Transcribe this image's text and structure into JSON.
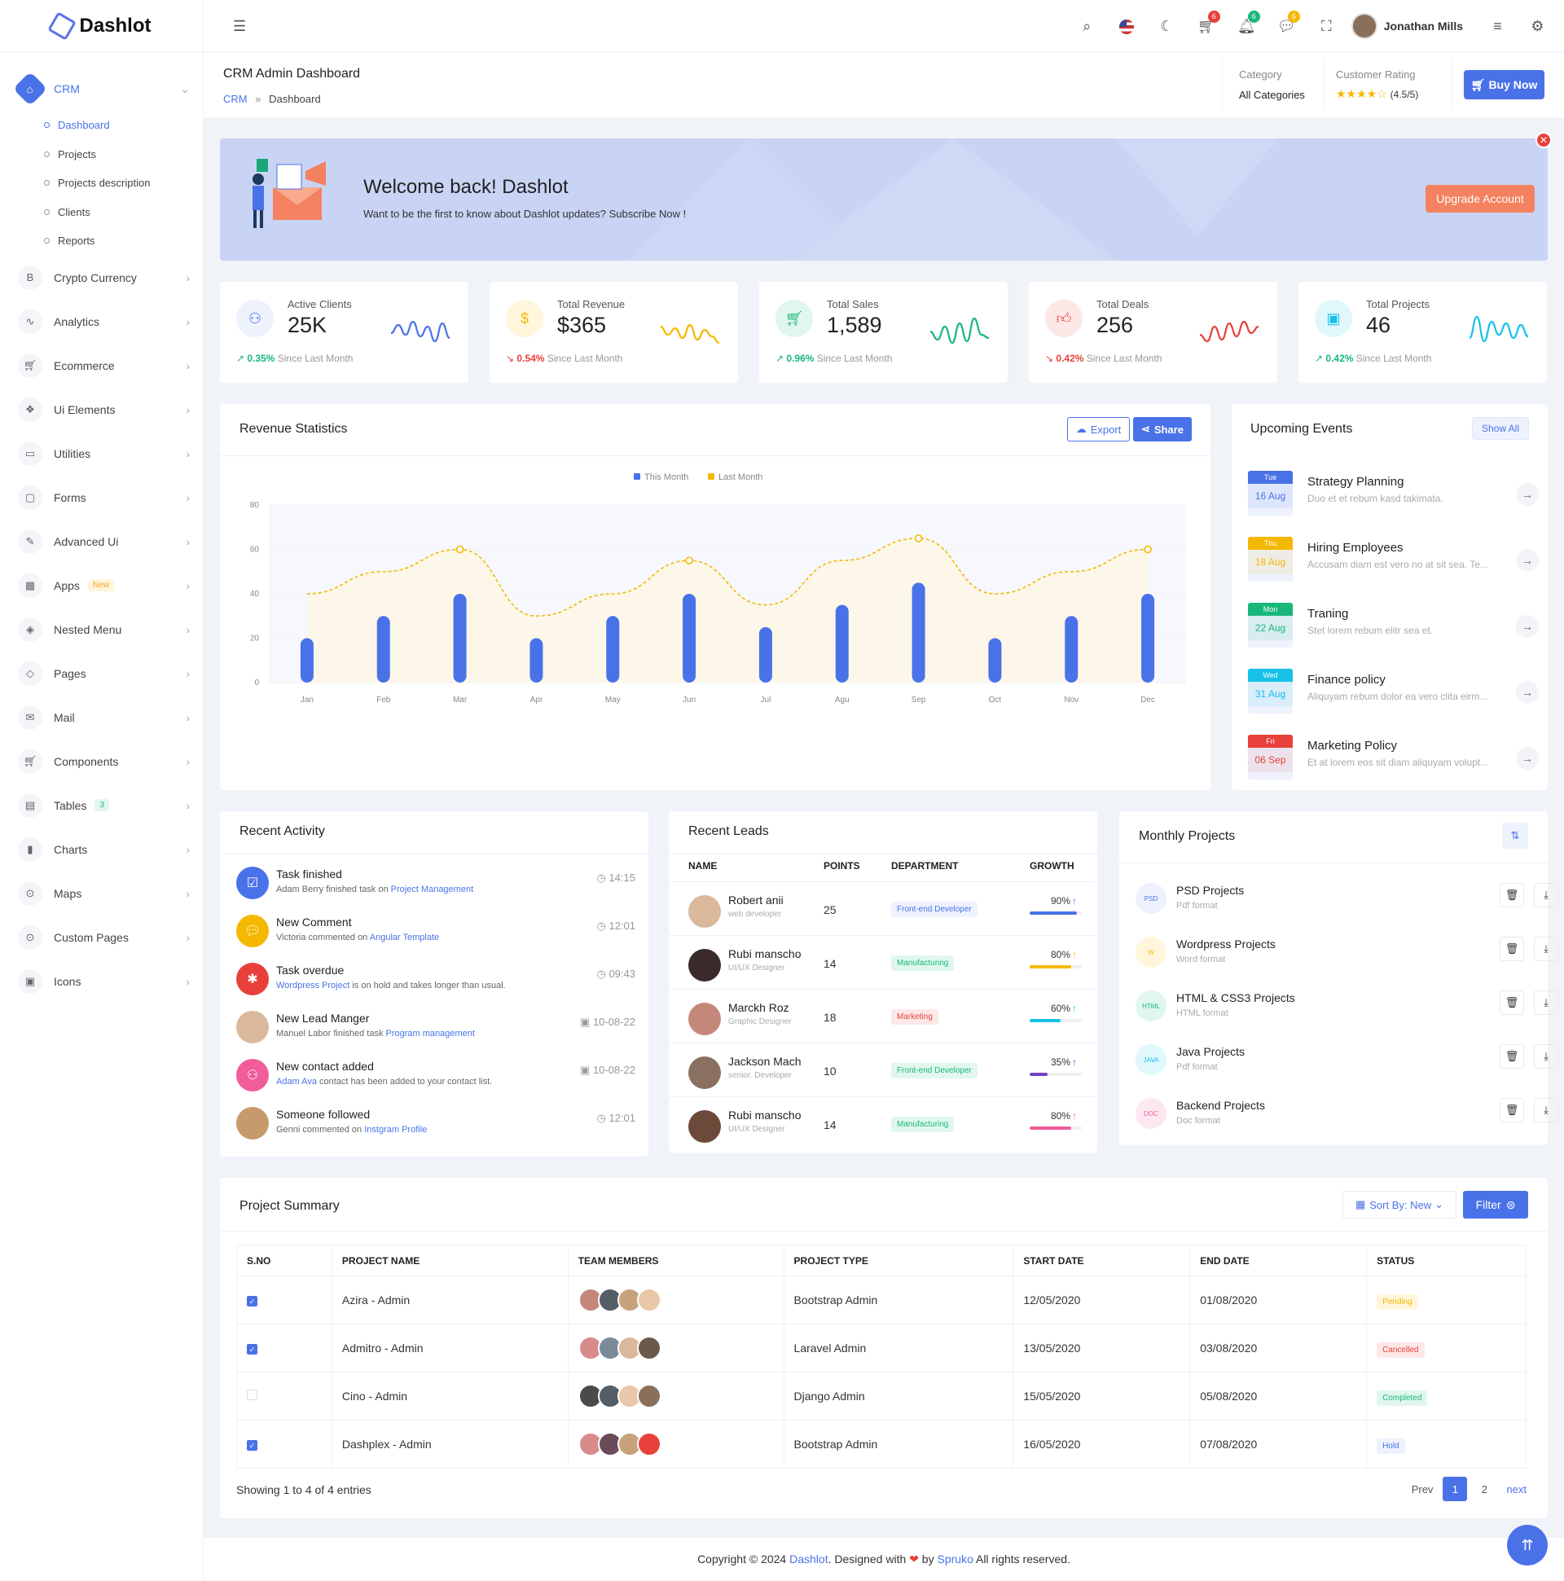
{
  "brand": "Dashlot",
  "sidebar": {
    "items": [
      {
        "label": "CRM",
        "icon": "home-icon"
      },
      {
        "label": "Crypto Currency",
        "icon": "bitcoin-icon"
      },
      {
        "label": "Analytics",
        "icon": "pulse-icon"
      },
      {
        "label": "Ecommerce",
        "icon": "cart-icon"
      },
      {
        "label": "Ui Elements",
        "icon": "cubes-icon"
      },
      {
        "label": "Utilities",
        "icon": "briefcase-icon"
      },
      {
        "label": "Forms",
        "icon": "form-icon"
      },
      {
        "label": "Advanced Ui",
        "icon": "brush-icon"
      },
      {
        "label": "Apps",
        "icon": "grid-icon",
        "badge": "New"
      },
      {
        "label": "Nested Menu",
        "icon": "layers-icon"
      },
      {
        "label": "Pages",
        "icon": "stack-icon"
      },
      {
        "label": "Mail",
        "icon": "mail-icon"
      },
      {
        "label": "Components",
        "icon": "cart-icon"
      },
      {
        "label": "Tables",
        "icon": "table-icon",
        "badge": "3"
      },
      {
        "label": "Charts",
        "icon": "bar-chart-icon"
      },
      {
        "label": "Maps",
        "icon": "map-pin-icon"
      },
      {
        "label": "Custom Pages",
        "icon": "map-pin-icon"
      },
      {
        "label": "Icons",
        "icon": "icons-icon"
      }
    ],
    "crm_sub": [
      "Dashboard",
      "Projects",
      "Projects description",
      "Clients",
      "Reports"
    ]
  },
  "topbar": {
    "user_name": "Jonathan Mills",
    "cart_count": "6",
    "notif_count": "6",
    "msg_count": "6"
  },
  "header": {
    "title": "CRM Admin Dashboard",
    "crumb_1": "CRM",
    "crumb_sep": "»",
    "crumb_2": "Dashboard",
    "category_label": "Category",
    "category_value": "All Categories",
    "rating_label": "Customer Rating",
    "rating_value": "(4.5/5)",
    "rating_stars": 4.5,
    "buy_label": "Buy Now"
  },
  "welcome": {
    "title": "Welcome back! Dashlot",
    "text": "Want to be the first to know about Dashlot updates? Subscribe Now !",
    "button": "Upgrade Account"
  },
  "stats": [
    {
      "title": "Active Clients",
      "value": "25K",
      "change": "0.35%",
      "dir": "up",
      "since": "Since Last Month",
      "color": "#4a72e8",
      "bg": "#eef2fd",
      "icon": "users-icon"
    },
    {
      "title": "Total Revenue",
      "value": "$365",
      "change": "0.54%",
      "dir": "down",
      "since": "Since Last Month",
      "color": "#f5b800",
      "bg": "#fff6dc",
      "icon": "dollar-icon"
    },
    {
      "title": "Total Sales",
      "value": "1,589",
      "change": "0.96%",
      "dir": "up",
      "since": "Since Last Month",
      "color": "#19b77a",
      "bg": "#e1f7ee",
      "icon": "cart-icon"
    },
    {
      "title": "Total Deals",
      "value": "256",
      "change": "0.42%",
      "dir": "down",
      "since": "Since Last Month",
      "color": "#e8413b",
      "bg": "#fde8e8",
      "icon": "thumb-icon"
    },
    {
      "title": "Total Projects",
      "value": "46",
      "change": "0.42%",
      "dir": "up",
      "since": "Since Last Month",
      "color": "#17c1e8",
      "bg": "#e0f7fc",
      "icon": "folder-icon"
    }
  ],
  "revenue": {
    "title": "Revenue Statistics",
    "export": "Export",
    "share": "Share"
  },
  "chart_data": {
    "type": "bar",
    "categories": [
      "Jan",
      "Feb",
      "Mar",
      "Apr",
      "May",
      "Jun",
      "Jul",
      "Agu",
      "Sep",
      "Oct",
      "Nov",
      "Dec"
    ],
    "series": [
      {
        "name": "This Month",
        "type": "bar",
        "values": [
          20,
          30,
          40,
          20,
          30,
          40,
          25,
          35,
          45,
          20,
          30,
          40
        ],
        "color": "#4a72e8"
      },
      {
        "name": "Last Month",
        "type": "line",
        "values": [
          40,
          50,
          60,
          30,
          40,
          55,
          35,
          55,
          65,
          40,
          50,
          60
        ],
        "color": "#f5b800"
      }
    ],
    "ylim": [
      0,
      80
    ],
    "yticks": [
      0,
      20,
      40,
      60,
      80
    ],
    "legend": "top-center"
  },
  "events": {
    "title": "Upcoming Events",
    "show_all": "Show All",
    "items": [
      {
        "day": "Tue",
        "date": "16 Aug",
        "name": "Strategy Planning",
        "desc": "Duo et et rebum kasd takimata.",
        "color": "#4a72e8"
      },
      {
        "day": "Thu",
        "date": "18 Aug",
        "name": "Hiring Employees",
        "desc": "Accusam diam est vero no at sit sea. Te...",
        "color": "#f5b800"
      },
      {
        "day": "Mon",
        "date": "22 Aug",
        "name": "Traning",
        "desc": "Stet lorem rebum elitr sea et.",
        "color": "#19b77a"
      },
      {
        "day": "Wed",
        "date": "31 Aug",
        "name": "Finance policy",
        "desc": "Aliquyam rebum dolor ea vero clita eirm...",
        "color": "#17c1e8"
      },
      {
        "day": "Fri",
        "date": "06 Sep",
        "name": "Marketing Policy",
        "desc": "Et at lorem eos sit diam aliquyam volupt...",
        "color": "#e8413b"
      }
    ]
  },
  "activity": {
    "title": "Recent Activity",
    "items": [
      {
        "title": "Task finished",
        "pre": "Adam Berry finished task on ",
        "link": "Project Management",
        "post": "",
        "time": "14:15",
        "color": "#4a72e8",
        "icon": "check-icon",
        "ticon": "◷"
      },
      {
        "title": "New Comment",
        "pre": "Victoria commented on ",
        "link": "Angular Template",
        "post": "",
        "time": "12:01",
        "color": "#f5b800",
        "icon": "comment-icon",
        "ticon": "◷"
      },
      {
        "title": "Task overdue",
        "pre": "",
        "link": "Wordpress Project",
        "post": " is on hold and takes longer than usual.",
        "time": "09:43",
        "color": "#e8413b",
        "icon": "bug-icon",
        "ticon": "◷"
      },
      {
        "title": "New Lead Manger",
        "pre": "Manuel Labor finished task ",
        "link": "Program management",
        "post": "",
        "time": "10-08-22",
        "color": "#d9b89c",
        "icon": "avatar",
        "ticon": "▣"
      },
      {
        "title": "New contact added",
        "pre": "",
        "link": "Adam Ava",
        "post": " contact has been added to your contact list.",
        "time": "10-08-22",
        "color": "#f15c9a",
        "icon": "user-plus-icon",
        "ticon": "▣"
      },
      {
        "title": "Someone followed",
        "pre": "Genni commented on ",
        "link": "Instgram Profile",
        "post": "",
        "time": "12:01",
        "color": "#c79a6b",
        "icon": "avatar",
        "ticon": "◷"
      }
    ]
  },
  "leads": {
    "title": "Recent Leads",
    "headers": [
      "NAME",
      "POINTS",
      "DEPARTMENT",
      "GROWTH"
    ],
    "rows": [
      {
        "name": "Robert anii",
        "role": "web developer",
        "points": "25",
        "dept": "Front-end Developer",
        "growth": "90%",
        "pct": 90,
        "color": "#4a72e8",
        "deptbg": "#eef2fd",
        "deptfg": "#4a72e8"
      },
      {
        "name": "Rubi mansch​o",
        "role": "UI/UX Designer",
        "points": "14",
        "dept": "Manufacturing",
        "growth": "80%",
        "pct": 80,
        "color": "#f5b800",
        "deptbg": "#e1f7ee",
        "deptfg": "#19b77a"
      },
      {
        "name": "Marckh Roz",
        "role": "Graphic Designer",
        "points": "18",
        "dept": "Marketing",
        "growth": "60%",
        "pct": 60,
        "color": "#17c1e8",
        "deptbg": "#fde8e8",
        "deptfg": "#e8413b"
      },
      {
        "name": "Jackson Mach",
        "role": "senior. Developer",
        "points": "10",
        "dept": "Front-end Developer",
        "growth": "35%",
        "pct": 35,
        "color": "#6f42c1",
        "deptbg": "#e1f7ee",
        "deptfg": "#19b77a"
      },
      {
        "name": "Rubi mansch​o",
        "role": "UI/UX Designer",
        "points": "14",
        "dept": "Manufacturing",
        "growth": "80%",
        "pct": 80,
        "color": "#f15c9a",
        "deptbg": "#e1f7ee",
        "deptfg": "#19b77a"
      }
    ]
  },
  "monthly": {
    "title": "Monthly Projects",
    "items": [
      {
        "name": "PSD Projects",
        "format": "Pdf format",
        "color": "#4a72e8",
        "bg": "#eef2fd",
        "tag": "PSD"
      },
      {
        "name": "Wordpress Projects",
        "format": "Word format",
        "color": "#f5b800",
        "bg": "#fff6dc",
        "tag": "W"
      },
      {
        "name": "HTML & CSS3 Projects",
        "format": "HTML format",
        "color": "#19b77a",
        "bg": "#e1f7ee",
        "tag": "HTML"
      },
      {
        "name": "Java Projects",
        "format": "Pdf format",
        "color": "#17c1e8",
        "bg": "#e0f7fc",
        "tag": "JAVA"
      },
      {
        "name": "Backend Projects",
        "format": "Doc format",
        "color": "#f15c9a",
        "bg": "#fde8f1",
        "tag": "DOC"
      }
    ]
  },
  "summary": {
    "title": "Project Summary",
    "sort": "Sort By: New",
    "filter": "Filter",
    "headers": [
      "S.NO",
      "PROJECT NAME",
      "TEAM MEMBERS",
      "PROJECT TYPE",
      "START DATE",
      "END DATE",
      "STATUS"
    ],
    "rows": [
      {
        "checked": true,
        "name": "Azira - Admin",
        "type": "Bootstrap Admin",
        "start": "12/05/2020",
        "end": "01/08/2020",
        "status": "Pending",
        "sbg": "#fff6dc",
        "sfg": "#f5b800",
        "avatars": [
          "#c4887a",
          "#555d66",
          "#c7a27c",
          "#e8c8a8"
        ]
      },
      {
        "checked": true,
        "name": "Admitro - Admin",
        "type": "Laravel Admin",
        "start": "13/05/2020",
        "end": "03/08/2020",
        "status": "Cancelled",
        "sbg": "#fde8e8",
        "sfg": "#e8413b",
        "avatars": [
          "#d98a8a",
          "#7a8a99",
          "#d9b89c",
          "#6b5a4a"
        ]
      },
      {
        "checked": false,
        "name": "Cino - Admin",
        "type": "Django Admin",
        "start": "15/05/2020",
        "end": "05/08/2020",
        "status": "Completed",
        "sbg": "#e1f7ee",
        "sfg": "#19b77a",
        "avatars": [
          "#4a4a4a",
          "#555d66",
          "#e8c8a8",
          "#8a6f5a"
        ]
      },
      {
        "checked": true,
        "name": "Dashplex - Admin",
        "type": "Bootstrap Admin",
        "start": "16/05/2020",
        "end": "07/08/2020",
        "status": "Hold",
        "sbg": "#eef2fd",
        "sfg": "#4a72e8",
        "avatars": [
          "#d98a8a",
          "#6b4a5a",
          "#c7a27c",
          "#e8413b"
        ]
      }
    ],
    "showing": "Showing 1 to 4 of 4 entries",
    "prev": "Prev",
    "page1": "1",
    "page2": "2",
    "next": "next"
  },
  "footer": {
    "pre": "Copyright © 2024 ",
    "brand": "Dashlot",
    "mid": ". Designed with ",
    "by": " by ",
    "author": "Spruko",
    "post": " All rights reserved."
  }
}
